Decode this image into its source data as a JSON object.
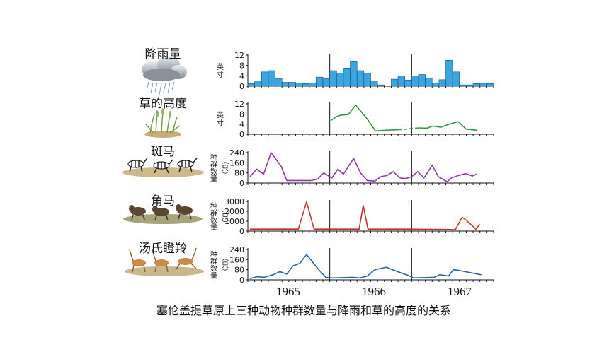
{
  "caption": "塞伦盖提草原上三种动物种群数量与降雨和草的高度的关系",
  "years": [
    "1965",
    "1966",
    "1967"
  ],
  "colors": {
    "rain": "#3aa5e0",
    "grass": "#2e9a42",
    "zebra": "#8e3ba6",
    "wildebeest": "#c8312b",
    "gazelle": "#1f64b0"
  },
  "icons": [
    "rain-cloud-icon",
    "grass-icon",
    "zebra-icon",
    "wildebeest-icon",
    "gazelle-icon"
  ],
  "chart_data": [
    {
      "type": "bar",
      "title": "降雨量",
      "ylabel": "英寸",
      "yticks": [
        0,
        4,
        8,
        12
      ],
      "ylim": [
        0,
        12
      ],
      "x_unit": "month",
      "xlim": [
        0,
        36
      ],
      "year_marks": [
        12,
        24
      ],
      "values": [
        1,
        2,
        5.5,
        6,
        3,
        1.5,
        1.5,
        1.2,
        1,
        1.3,
        3.5,
        3,
        6,
        5,
        7,
        9.5,
        6,
        5,
        2,
        0.5,
        0,
        2.7,
        4,
        2.4,
        4,
        4.5,
        3.2,
        1.2,
        2.5,
        10,
        5.5,
        0.5,
        0.5,
        1,
        1.2,
        1
      ]
    },
    {
      "type": "line",
      "title": "草的高度",
      "ylabel": "英寸",
      "yticks": [
        0,
        4,
        8,
        12
      ],
      "ylim": [
        0,
        12
      ],
      "x_unit": "month",
      "xlim": [
        0,
        36
      ],
      "year_marks": [
        12,
        24
      ],
      "series": [
        {
          "x": [
            12.2,
            13,
            13.6,
            14.7,
            15.8,
            17.5,
            18.7,
            20.2,
            22
          ],
          "y": [
            5.5,
            7,
            7.5,
            7.8,
            11.5,
            6,
            1.3,
            1.6,
            1.8
          ]
        },
        {
          "style": "dashed",
          "x": [
            22,
            23.5,
            25
          ],
          "y": [
            1.8,
            2.1,
            2.5
          ]
        },
        {
          "x": [
            25,
            26.3,
            27,
            28.3,
            29.3,
            30.8,
            32,
            33.6
          ],
          "y": [
            2.5,
            2.4,
            3.2,
            2.8,
            3.8,
            5,
            2,
            1.6
          ]
        }
      ]
    },
    {
      "type": "line",
      "title": "斑马",
      "ylabel": "种群数量（只）",
      "yticks": [
        0,
        80,
        160,
        240
      ],
      "ylim": [
        0,
        240
      ],
      "x_unit": "month",
      "xlim": [
        0,
        36
      ],
      "year_marks": [
        12,
        24
      ],
      "series": [
        {
          "x": [
            0.3,
            1.3,
            2.3,
            3.4,
            4.9,
            5.7,
            7.6,
            9.3,
            10.2,
            11.1,
            12.3,
            13.2,
            14,
            15.5,
            16.5,
            17.5,
            18.6,
            19.5,
            20.4,
            21.3,
            22.3,
            23.1,
            24,
            24.9,
            25.8,
            27,
            27.9,
            29.2,
            29.8,
            30.9,
            31.9,
            32.9,
            33.5
          ],
          "y": [
            50,
            110,
            70,
            240,
            130,
            20,
            20,
            20,
            30,
            80,
            40,
            110,
            70,
            195,
            80,
            20,
            15,
            50,
            60,
            90,
            40,
            35,
            50,
            90,
            40,
            140,
            50,
            10,
            40,
            60,
            75,
            55,
            70
          ]
        }
      ]
    },
    {
      "type": "line",
      "title": "角马",
      "ylabel": "种群数量（只）",
      "yticks": [
        0,
        1000,
        2000,
        3000
      ],
      "ylim": [
        0,
        3000
      ],
      "x_unit": "month",
      "xlim": [
        0,
        36
      ],
      "year_marks": [
        12,
        24
      ],
      "series": [
        {
          "x": [
            0.3,
            7.4,
            8.6,
            9.7,
            11.7,
            16.3,
            16.9,
            17.6,
            23.5,
            30.4,
            31.4,
            32,
            33.4,
            34
          ],
          "y": [
            200,
            200,
            2950,
            200,
            200,
            200,
            2600,
            200,
            200,
            150,
            1400,
            1100,
            200,
            700
          ]
        }
      ]
    },
    {
      "type": "line",
      "title": "汤氏瞪羚",
      "ylabel": "种群数量（只）",
      "yticks": [
        0,
        80,
        160,
        240
      ],
      "ylim": [
        0,
        240
      ],
      "x_unit": "month",
      "xlim": [
        0,
        36
      ],
      "year_marks": [
        12,
        24
      ],
      "series": [
        {
          "x": [
            0.3,
            1.4,
            2.4,
            3.7,
            4.7,
            5.7,
            6.6,
            7.6,
            8.6,
            10.4,
            11.4,
            12.4,
            15.4,
            16.4,
            17.5,
            18.6,
            20.3,
            21.2,
            23.5,
            24.3,
            27.3,
            28.1,
            29.4,
            30.1,
            30.9,
            34.2
          ],
          "y": [
            10,
            25,
            20,
            40,
            65,
            45,
            110,
            130,
            200,
            80,
            20,
            15,
            20,
            15,
            30,
            80,
            100,
            80,
            35,
            15,
            20,
            40,
            30,
            80,
            75,
            40
          ]
        }
      ]
    }
  ]
}
